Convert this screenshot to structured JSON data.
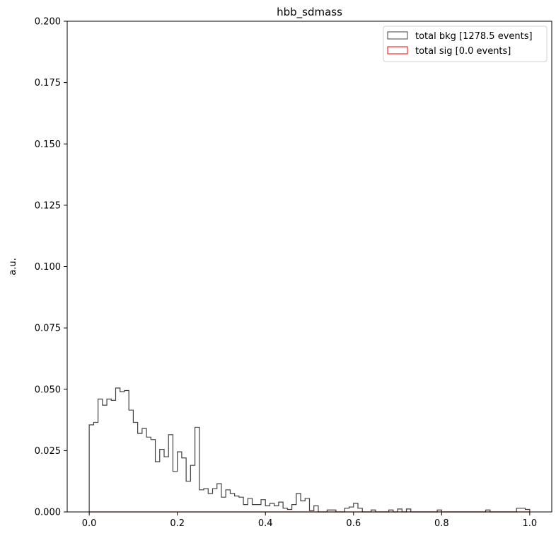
{
  "chart_data": {
    "type": "histogram-step",
    "title": "hbb_sdmass",
    "xlabel": "",
    "ylabel": "a.u.",
    "xlim": [
      -0.05,
      1.05
    ],
    "ylim": [
      0.0,
      0.2
    ],
    "x_ticks": [
      0.0,
      0.2,
      0.4,
      0.6,
      0.8,
      1.0
    ],
    "x_tick_labels": [
      "0.0",
      "0.2",
      "0.4",
      "0.6",
      "0.8",
      "1.0"
    ],
    "y_ticks": [
      0.0,
      0.025,
      0.05,
      0.075,
      0.1,
      0.125,
      0.15,
      0.175,
      0.2
    ],
    "y_tick_labels": [
      "0.000",
      "0.025",
      "0.050",
      "0.075",
      "0.100",
      "0.125",
      "0.150",
      "0.175",
      "0.200"
    ],
    "grid": false,
    "legend_position": "top-right",
    "bin_range": [
      0.0,
      1.0
    ],
    "series": [
      {
        "name": "total bkg [1278.5 events]",
        "color": "#404040",
        "values": [
          0.0355,
          0.0365,
          0.046,
          0.0435,
          0.046,
          0.0455,
          0.0505,
          0.049,
          0.0495,
          0.0415,
          0.0365,
          0.032,
          0.034,
          0.0305,
          0.0295,
          0.0205,
          0.0255,
          0.0225,
          0.0315,
          0.0165,
          0.0245,
          0.022,
          0.0125,
          0.019,
          0.0345,
          0.009,
          0.0095,
          0.0075,
          0.0095,
          0.0115,
          0.006,
          0.009,
          0.0075,
          0.0065,
          0.006,
          0.003,
          0.0055,
          0.003,
          0.003,
          0.005,
          0.0025,
          0.0035,
          0.0025,
          0.004,
          0.0015,
          0.001,
          0.003,
          0.0075,
          0.0045,
          0.0055,
          0.0005,
          0.0025,
          0.0,
          0.0,
          0.0008,
          0.0008,
          0.0,
          0.0,
          0.0015,
          0.002,
          0.0035,
          0.0015,
          0.0,
          0.0,
          0.0008,
          0.0,
          0.0,
          0.0,
          0.0008,
          0.0,
          0.0012,
          0.0,
          0.0012,
          0.0,
          0.0,
          0.0,
          0.0,
          0.0,
          0.0,
          0.0008,
          0.0,
          0.0,
          0.0,
          0.0,
          0.0,
          0.0,
          0.0,
          0.0,
          0.0,
          0.0,
          0.0008,
          0.0,
          0.0,
          0.0,
          0.0,
          0.0,
          0.0,
          0.0015,
          0.0015,
          0.001
        ]
      },
      {
        "name": "total sig [0.0 events]",
        "color": "#ff0000",
        "values": [
          0.0,
          0.0
        ]
      }
    ]
  }
}
